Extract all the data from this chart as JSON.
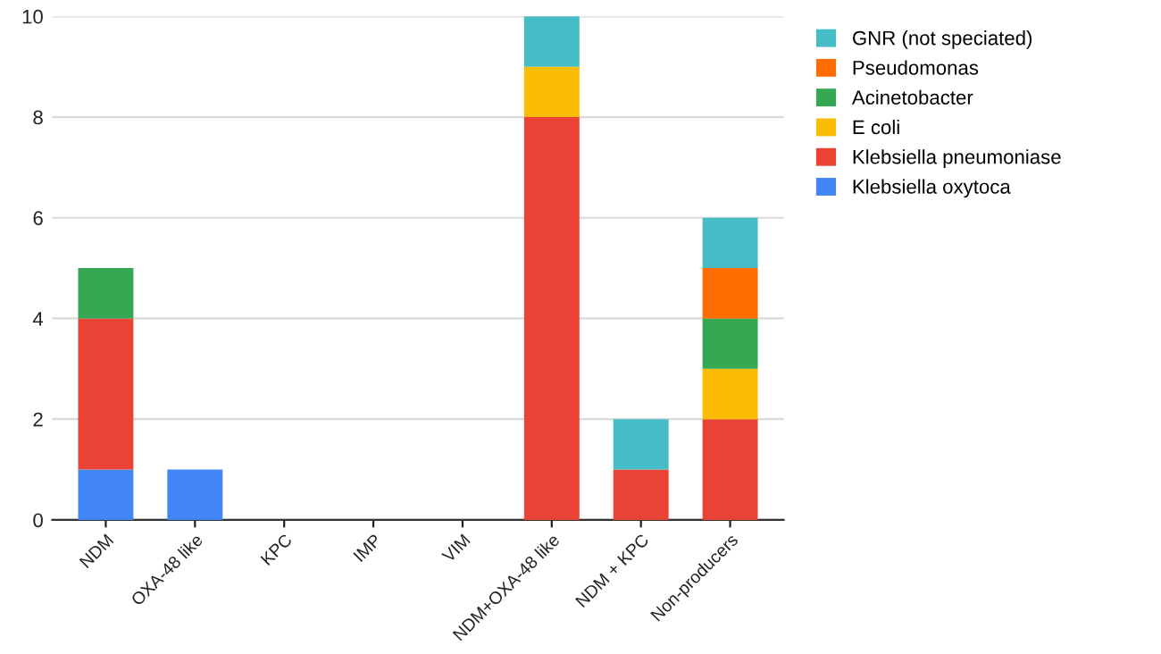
{
  "chart_data": {
    "type": "bar",
    "stacked": true,
    "categories": [
      "NDM",
      "OXA-48 like",
      "KPC",
      "IMP",
      "VIM",
      "NDM+OXA-48 like",
      "NDM + KPC",
      "Non-producers"
    ],
    "series": [
      {
        "name": "Klebsiella oxytoca",
        "color": "#4285f4",
        "values": [
          1,
          1,
          0,
          0,
          0,
          0,
          0,
          0
        ]
      },
      {
        "name": "Klebsiella pneumoniase",
        "color": "#ea4335",
        "values": [
          3,
          0,
          0,
          0,
          0,
          8,
          1,
          2
        ]
      },
      {
        "name": "E coli",
        "color": "#fbbc04",
        "values": [
          0,
          0,
          0,
          0,
          0,
          1,
          0,
          1
        ]
      },
      {
        "name": "Acinetobacter",
        "color": "#34a853",
        "values": [
          1,
          0,
          0,
          0,
          0,
          0,
          0,
          1
        ]
      },
      {
        "name": "Pseudomonas",
        "color": "#ff6d01",
        "values": [
          0,
          0,
          0,
          0,
          0,
          0,
          0,
          1
        ]
      },
      {
        "name": "GNR (not speciated)",
        "color": "#46bdc6",
        "values": [
          0,
          0,
          0,
          0,
          0,
          1,
          1,
          1
        ]
      }
    ],
    "ylim": [
      0,
      10
    ],
    "yticks": [
      0,
      2,
      4,
      6,
      8,
      10
    ],
    "grid": "y",
    "legend": "right"
  }
}
